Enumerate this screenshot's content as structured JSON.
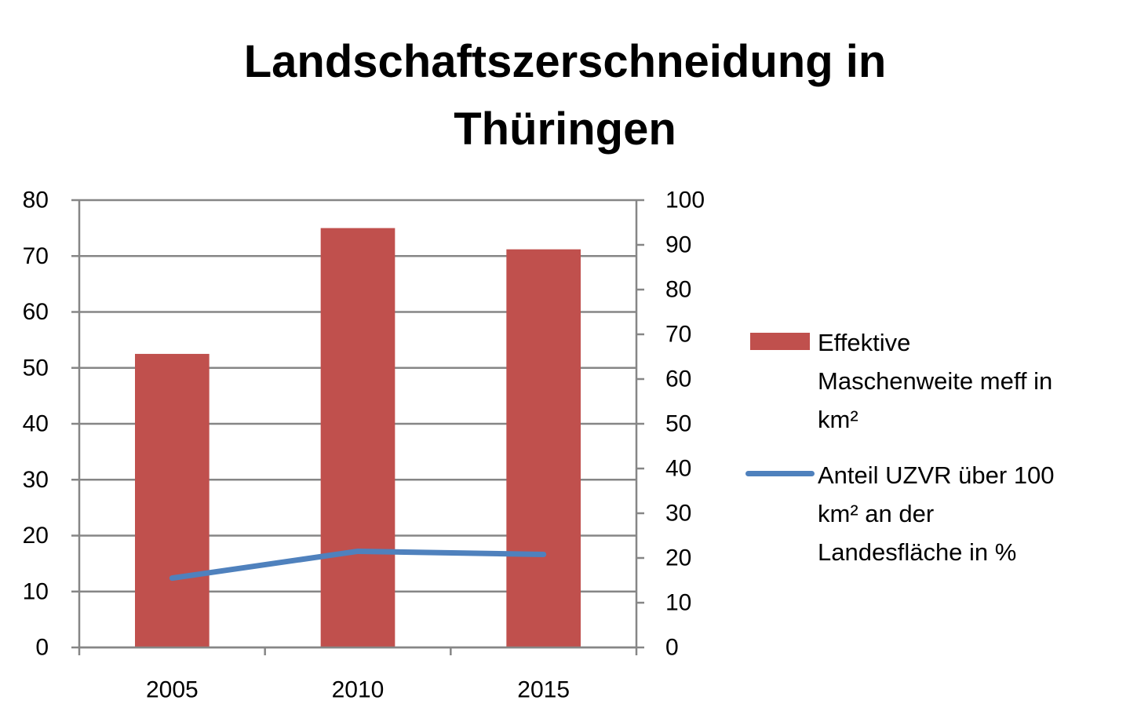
{
  "chart_data": {
    "type": "bar",
    "title_lines": [
      "Landschaftszerschneidung in",
      "Thüringen"
    ],
    "categories": [
      "2005",
      "2010",
      "2015"
    ],
    "series": [
      {
        "name": "Effektive Maschenweite meff in km²",
        "name_lines": [
          "Effektive",
          "Maschenweite meff in",
          "km²"
        ],
        "type": "bar",
        "axis": "left",
        "color": "#C0504D",
        "values": [
          52.5,
          75,
          71.2
        ]
      },
      {
        "name": "Anteil UZVR über 100 km² an der Landesfläche in %",
        "name_lines": [
          "Anteil UZVR über 100",
          "km² an der",
          "Landesfläche in %"
        ],
        "type": "line",
        "axis": "right",
        "color": "#4F81BD",
        "values": [
          15.5,
          21.5,
          20.8
        ]
      }
    ],
    "y_left": {
      "min": 0,
      "max": 80,
      "ticks": [
        "0",
        "10",
        "20",
        "30",
        "40",
        "50",
        "60",
        "70",
        "80"
      ]
    },
    "y_right": {
      "min": 0,
      "max": 100,
      "ticks": [
        "0",
        "10",
        "20",
        "30",
        "40",
        "50",
        "60",
        "70",
        "80",
        "90",
        "100"
      ]
    },
    "grid": true,
    "legend_position": "right"
  }
}
